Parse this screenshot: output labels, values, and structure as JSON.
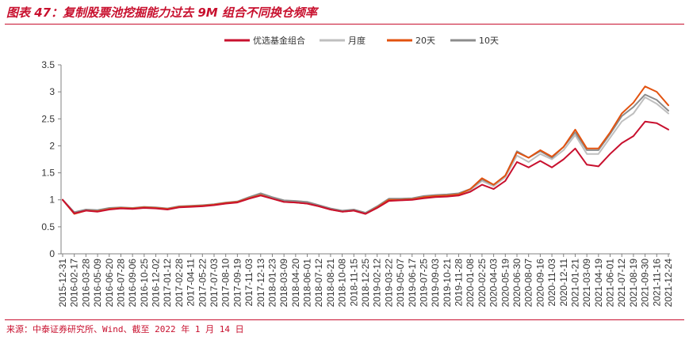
{
  "header": {
    "title": "图表 47：复制股票池挖掘能力过去 9M 组合不同换仓频率"
  },
  "footer": {
    "source": "来源：中泰证券研究所、Wind、截至 2022 年 1 月 14 日"
  },
  "colors": {
    "accent": "#c8102e"
  },
  "chart_data": {
    "type": "line",
    "title": "图表 47：复制股票池挖掘能力过去 9M 组合不同换仓频率",
    "xlabel": "",
    "ylabel": "",
    "ylim": [
      0,
      3.5
    ],
    "yticks": [
      0,
      0.5,
      1,
      1.5,
      2,
      2.5,
      3,
      3.5
    ],
    "ytick_labels": [
      "0",
      "0.5",
      "1",
      "1.5",
      "2",
      "2.5",
      "3",
      "3.5"
    ],
    "grid": false,
    "legend_position": "top-center",
    "x": [
      "2015-12-31",
      "2016-02-17",
      "2016-03-28",
      "2016-05-09",
      "2016-06-20",
      "2016-07-28",
      "2016-09-06",
      "2016-10-25",
      "2016-12-02",
      "2017-01-12",
      "2017-02-28",
      "2017-04-11",
      "2017-05-22",
      "2017-07-03",
      "2017-08-10",
      "2017-09-19",
      "2017-11-03",
      "2017-12-13",
      "2018-01-23",
      "2018-03-09",
      "2018-04-20",
      "2018-06-01",
      "2018-07-12",
      "2018-08-21",
      "2018-10-08",
      "2018-11-15",
      "2018-12-25",
      "2019-02-12",
      "2019-03-22",
      "2019-05-07",
      "2019-06-17",
      "2019-07-25",
      "2019-09-03",
      "2019-10-21",
      "2019-11-28",
      "2020-01-08",
      "2020-02-25",
      "2020-04-03",
      "2020-05-19",
      "2020-06-30",
      "2020-08-07",
      "2020-09-16",
      "2020-11-03",
      "2020-12-11",
      "2021-01-21",
      "2021-03-09",
      "2021-04-19",
      "2021-06-01",
      "2021-07-12",
      "2021-08-19",
      "2021-09-30",
      "2021-11-16",
      "2021-12-24"
    ],
    "series": [
      {
        "name": "优选基金组合",
        "color": "#c8102e",
        "values": [
          1.0,
          0.75,
          0.8,
          0.78,
          0.82,
          0.84,
          0.83,
          0.85,
          0.84,
          0.82,
          0.86,
          0.87,
          0.88,
          0.9,
          0.93,
          0.95,
          1.02,
          1.08,
          1.02,
          0.96,
          0.95,
          0.93,
          0.88,
          0.82,
          0.78,
          0.8,
          0.74,
          0.85,
          0.98,
          0.99,
          1.0,
          1.03,
          1.05,
          1.06,
          1.08,
          1.15,
          1.28,
          1.2,
          1.35,
          1.7,
          1.6,
          1.72,
          1.6,
          1.75,
          1.95,
          1.65,
          1.62,
          1.85,
          2.05,
          2.18,
          2.45,
          2.42,
          2.3
        ]
      },
      {
        "name": "月度",
        "color": "#bfbfbf",
        "values": [
          1.0,
          0.76,
          0.81,
          0.8,
          0.84,
          0.85,
          0.84,
          0.86,
          0.85,
          0.83,
          0.87,
          0.88,
          0.89,
          0.91,
          0.94,
          0.96,
          1.03,
          1.1,
          1.03,
          0.97,
          0.96,
          0.94,
          0.89,
          0.83,
          0.79,
          0.81,
          0.75,
          0.86,
          1.0,
          1.0,
          1.01,
          1.05,
          1.07,
          1.08,
          1.1,
          1.18,
          1.35,
          1.25,
          1.42,
          1.82,
          1.7,
          1.85,
          1.75,
          1.92,
          2.2,
          1.85,
          1.85,
          2.15,
          2.45,
          2.6,
          2.9,
          2.78,
          2.6
        ]
      },
      {
        "name": "20天",
        "color": "#e2520f",
        "values": [
          1.0,
          0.74,
          0.8,
          0.79,
          0.83,
          0.85,
          0.84,
          0.86,
          0.85,
          0.83,
          0.87,
          0.88,
          0.89,
          0.91,
          0.94,
          0.96,
          1.03,
          1.09,
          1.02,
          0.96,
          0.95,
          0.93,
          0.88,
          0.82,
          0.78,
          0.8,
          0.74,
          0.86,
          1.0,
          1.0,
          1.01,
          1.05,
          1.07,
          1.08,
          1.1,
          1.2,
          1.4,
          1.28,
          1.45,
          1.88,
          1.78,
          1.92,
          1.8,
          1.98,
          2.3,
          1.95,
          1.95,
          2.25,
          2.6,
          2.8,
          3.1,
          3.0,
          2.75
        ]
      },
      {
        "name": "10天",
        "color": "#8c8c8c",
        "values": [
          1.0,
          0.77,
          0.82,
          0.81,
          0.85,
          0.86,
          0.85,
          0.87,
          0.86,
          0.84,
          0.88,
          0.89,
          0.9,
          0.92,
          0.95,
          0.97,
          1.05,
          1.12,
          1.05,
          0.99,
          0.98,
          0.96,
          0.9,
          0.84,
          0.8,
          0.82,
          0.76,
          0.88,
          1.02,
          1.02,
          1.03,
          1.07,
          1.09,
          1.1,
          1.12,
          1.2,
          1.38,
          1.28,
          1.45,
          1.9,
          1.78,
          1.9,
          1.78,
          1.98,
          2.25,
          1.92,
          1.92,
          2.22,
          2.55,
          2.72,
          2.95,
          2.85,
          2.65
        ]
      }
    ]
  }
}
